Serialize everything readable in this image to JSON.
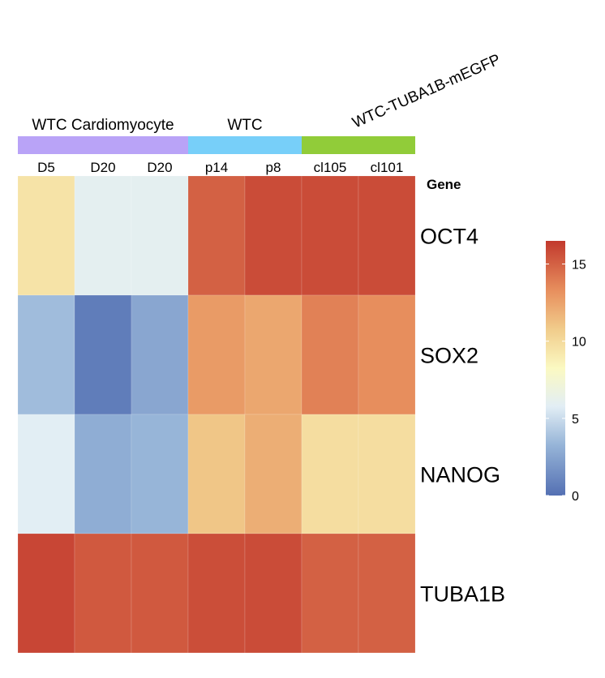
{
  "chart_data": {
    "type": "heatmap",
    "title": "",
    "group_annotations": [
      {
        "label": "WTC Cardiomyocyte",
        "color": "#B9A3F7",
        "columns": [
          0,
          1,
          2
        ]
      },
      {
        "label": "WTC",
        "color": "#77CFF9",
        "columns": [
          3,
          4
        ]
      },
      {
        "label": "WTC-TUBA1B-mEGFP",
        "color": "#91CC39",
        "columns": [
          5,
          6
        ]
      }
    ],
    "columns": [
      "D5",
      "D20",
      "D20",
      "p14",
      "p8",
      "cl105",
      "cl101"
    ],
    "rows": [
      "OCT4",
      "SOX2",
      "NANOG",
      "TUBA1B"
    ],
    "row_header": "Gene",
    "values": [
      [
        9.5,
        6.0,
        6.0,
        15.0,
        15.8,
        15.8,
        15.8
      ],
      [
        3.6,
        0.6,
        2.6,
        12.8,
        12.3,
        13.8,
        13.3
      ],
      [
        5.8,
        2.9,
        3.3,
        11.0,
        12.0,
        9.8,
        9.8
      ],
      [
        16.0,
        15.3,
        15.3,
        15.7,
        15.8,
        15.0,
        15.0
      ]
    ],
    "colorscale": {
      "min": 0,
      "max": 16.5,
      "ticks": [
        0,
        5,
        10,
        15
      ],
      "stops": [
        [
          0.0,
          "#5470B3"
        ],
        [
          0.2,
          "#97B5D8"
        ],
        [
          0.35,
          "#E2EEF5"
        ],
        [
          0.5,
          "#FBF9C2"
        ],
        [
          0.65,
          "#F1CD8C"
        ],
        [
          0.8,
          "#E8915F"
        ],
        [
          1.0,
          "#C2392D"
        ]
      ]
    }
  }
}
